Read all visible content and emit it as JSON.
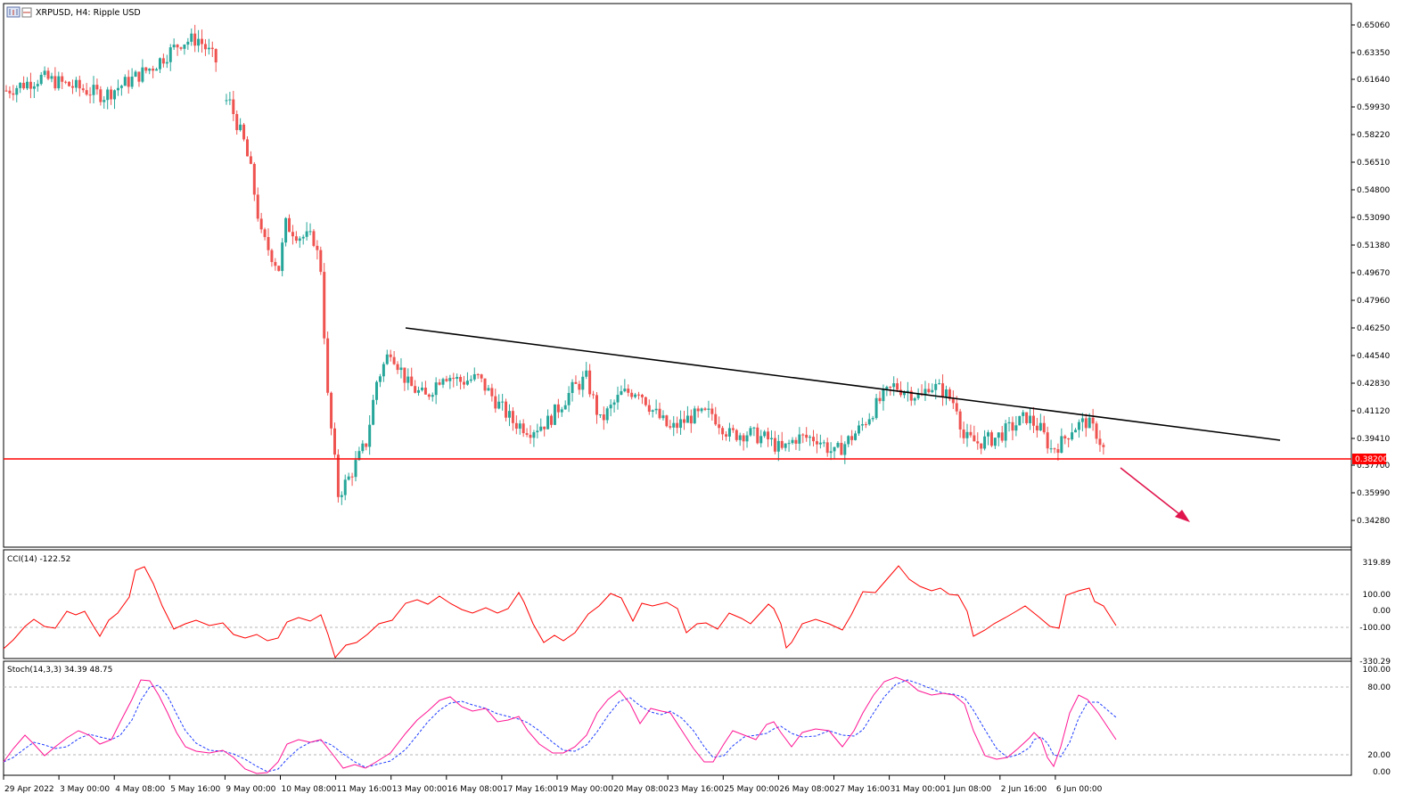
{
  "window": {
    "symbol_header": "XRPUSD, H4:  Ripple USD",
    "icon": "chart-window-icon"
  },
  "main_chart": {
    "price_labels": [
      "0.65060",
      "0.63350",
      "0.61640",
      "0.59930",
      "0.58220",
      "0.56510",
      "0.54800",
      "0.53090",
      "0.51380",
      "0.49670",
      "0.47960",
      "0.46250",
      "0.44540",
      "0.42830",
      "0.41120",
      "0.39410",
      "0.37700",
      "0.35990",
      "0.34280"
    ],
    "support_level": "0.38200",
    "support_color": "#ff0000",
    "bull_color": "#26a69a",
    "bear_color": "#ef5350",
    "trendline_color": "#000000",
    "arrow_color": "#e0144c"
  },
  "cci_pane": {
    "title": "CCI(14) -122.52",
    "scale_labels": [
      "319.89",
      "100.00",
      "0.00",
      "-100.00",
      "-330.29"
    ],
    "line_color": "#ff0000"
  },
  "stoch_pane": {
    "title": "Stoch(14,3,3) 34.39 48.75",
    "scale_labels": [
      "100.00",
      "80.00",
      "20.00",
      "0.00"
    ],
    "main_color": "#ff1493",
    "signal_color": "#1e3cff"
  },
  "time_axis": {
    "labels": [
      "29 Apr 2022",
      "3 May 00:00",
      "4 May 08:00",
      "5 May 16:00",
      "9 May 00:00",
      "10 May 08:00",
      "11 May 16:00",
      "13 May 00:00",
      "16 May 08:00",
      "17 May 16:00",
      "19 May 00:00",
      "20 May 08:00",
      "23 May 16:00",
      "25 May 00:00",
      "26 May 08:00",
      "27 May 16:00",
      "31 May 00:00",
      "1 Jun 08:00",
      "2 Jun 16:00",
      "6 Jun 00:00"
    ]
  }
}
